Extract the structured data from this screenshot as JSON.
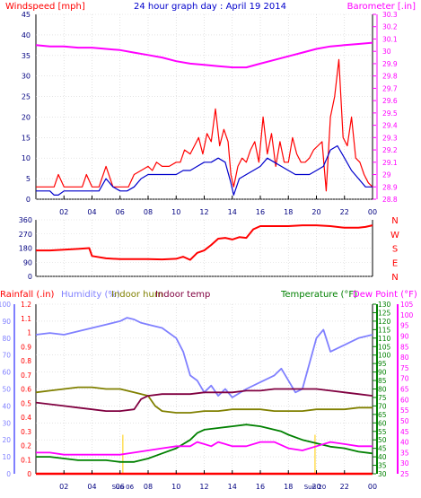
{
  "chart_data": [
    {
      "type": "line",
      "title": "24 hour graph day : April 19 2014",
      "ylabel": "Windspeed [mph]",
      "y2label": "Barometer [.in]",
      "x_ticks": [
        "02",
        "04",
        "06",
        "08",
        "10",
        "12",
        "14",
        "16",
        "18",
        "20",
        "22",
        "00"
      ],
      "ylim": [
        0,
        45
      ],
      "yticks": [
        "0",
        "5",
        "10",
        "15",
        "20",
        "25",
        "30",
        "35",
        "40",
        "45"
      ],
      "y2lim": [
        28.8,
        30.3
      ],
      "y2ticks": [
        "28.8",
        "28.9",
        "29",
        "29.1",
        "29.2",
        "29.3",
        "29.4",
        "29.5",
        "29.6",
        "29.7",
        "29.8",
        "29.9",
        "30",
        "30.1",
        "30.2",
        "30.3"
      ],
      "series": [
        {
          "name": "Windspeed [mph]",
          "color": "#ff0000",
          "axis": "left",
          "x": [
            0,
            0.5,
            1,
            1.3,
            1.6,
            2,
            2.5,
            3,
            3.3,
            3.6,
            4,
            4.5,
            5,
            5.5,
            6,
            6.3,
            6.6,
            7,
            7.5,
            8,
            8.3,
            8.6,
            9,
            9.5,
            10,
            10.3,
            10.6,
            11,
            11.3,
            11.6,
            11.9,
            12.2,
            12.5,
            12.8,
            13.1,
            13.4,
            13.7,
            13.9,
            14.1,
            14.4,
            14.7,
            15,
            15.3,
            15.6,
            15.9,
            16.2,
            16.5,
            16.8,
            17.1,
            17.4,
            17.7,
            18,
            18.3,
            18.6,
            18.9,
            19.2,
            19.5,
            19.8,
            20.1,
            20.4,
            20.7,
            21,
            21.3,
            21.6,
            21.9,
            22.2,
            22.5,
            22.8,
            23.1,
            23.4,
            23.7,
            24
          ],
          "values": [
            3,
            3,
            3,
            3,
            6,
            3,
            3,
            3,
            3,
            6,
            3,
            3,
            8,
            3,
            3,
            3,
            3,
            6,
            7,
            8,
            7,
            9,
            8,
            8,
            9,
            9,
            12,
            11,
            13,
            15,
            11,
            16,
            14,
            22,
            13,
            17,
            14,
            6,
            3,
            8,
            10,
            9,
            12,
            14,
            9,
            20,
            11,
            16,
            8,
            14,
            9,
            9,
            15,
            11,
            9,
            9,
            10,
            12,
            13,
            14,
            2,
            20,
            25,
            34,
            15,
            13,
            20,
            10,
            9,
            6,
            4,
            3
          ]
        },
        {
          "name": "Windspeed avg",
          "color": "#0000cc",
          "axis": "left",
          "x": [
            0,
            0.5,
            1,
            1.3,
            1.6,
            2,
            2.5,
            3,
            3.5,
            4,
            4.5,
            5,
            5.5,
            6,
            6.5,
            7,
            7.5,
            8,
            8.5,
            9,
            9.5,
            10,
            10.5,
            11,
            11.5,
            12,
            12.5,
            13,
            13.5,
            13.9,
            14.1,
            14.5,
            15,
            15.5,
            16,
            16.5,
            17,
            17.5,
            18,
            18.5,
            19,
            19.5,
            20,
            20.5,
            21,
            21.5,
            22,
            22.5,
            23,
            23.5,
            24
          ],
          "values": [
            2,
            2,
            2,
            1,
            1,
            2,
            2,
            2,
            2,
            2,
            2,
            5,
            3,
            2,
            2,
            3,
            5,
            6,
            6,
            6,
            6,
            6,
            7,
            7,
            8,
            9,
            9,
            10,
            9,
            4,
            1,
            5,
            6,
            7,
            8,
            10,
            9,
            8,
            7,
            6,
            6,
            6,
            7,
            8,
            12,
            13,
            10,
            7,
            5,
            3,
            3
          ]
        },
        {
          "name": "Barometer [.in]",
          "color": "#ff00ff",
          "axis": "right",
          "x": [
            0,
            1,
            2,
            3,
            4,
            5,
            6,
            7,
            8,
            9,
            10,
            11,
            12,
            13,
            14,
            15,
            16,
            17,
            18,
            19,
            20,
            21,
            22,
            23,
            24
          ],
          "values": [
            30.05,
            30.04,
            30.04,
            30.03,
            30.03,
            30.02,
            30.01,
            29.99,
            29.97,
            29.95,
            29.92,
            29.9,
            29.89,
            29.88,
            29.87,
            29.87,
            29.9,
            29.93,
            29.96,
            29.99,
            30.02,
            30.04,
            30.05,
            30.06,
            30.07
          ]
        }
      ]
    },
    {
      "type": "line",
      "title": "",
      "y_compass": [
        "N",
        "W",
        "S",
        "E",
        "N"
      ],
      "ylim": [
        0,
        360
      ],
      "yticks": [
        "0",
        "90",
        "180",
        "270",
        "360"
      ],
      "x_ticks": [
        "02",
        "04",
        "06",
        "08",
        "10",
        "12",
        "14",
        "16",
        "18",
        "20",
        "22",
        "00"
      ],
      "series": [
        {
          "name": "Wind direction",
          "color": "#ff0000",
          "x": [
            0,
            1,
            2,
            3,
            3.8,
            4,
            5,
            6,
            7,
            8,
            9,
            9.5,
            10,
            10.5,
            11,
            11.5,
            12,
            12.5,
            13,
            13.5,
            14,
            14.5,
            15,
            15.5,
            16,
            17,
            18,
            19,
            20,
            21,
            22,
            23,
            23.5,
            24
          ],
          "values": [
            165,
            165,
            170,
            175,
            180,
            130,
            115,
            110,
            110,
            110,
            108,
            110,
            112,
            125,
            105,
            150,
            165,
            200,
            240,
            245,
            235,
            250,
            245,
            300,
            320,
            320,
            320,
            325,
            325,
            320,
            310,
            310,
            315,
            325
          ]
        }
      ]
    },
    {
      "type": "line",
      "title": "",
      "legend": [
        "Rainfall (.in)",
        "Humidity (%)",
        "Indoor hum",
        "Indoor temp",
        "Temperature (°F)",
        "Dew Point (°F)"
      ],
      "x_ticks": [
        "02",
        "04",
        "06",
        "08",
        "10",
        "12",
        "14",
        "16",
        "18",
        "20",
        "22",
        "00"
      ],
      "annotations": [
        "Sun 06",
        "Sun 20"
      ],
      "rain_ticks": [
        "0",
        "0.1",
        "0.2",
        "0.3",
        "0.4",
        "0.5",
        "0.6",
        "0.7",
        "0.8",
        "0.9",
        "1",
        "1.1",
        "1.2"
      ],
      "hum_ticks": [
        "0",
        "10",
        "20",
        "30",
        "40",
        "50",
        "60",
        "70",
        "80",
        "90",
        "100"
      ],
      "temp_ticks": [
        "30",
        "35",
        "40",
        "45",
        "50",
        "55",
        "60",
        "65",
        "70",
        "75",
        "80",
        "85",
        "90",
        "95",
        "100",
        "105",
        "110",
        "115",
        "120",
        "125",
        "130"
      ],
      "dew_ticks": [
        "25",
        "30",
        "35",
        "40",
        "45",
        "50",
        "55",
        "60",
        "65",
        "70",
        "75",
        "80",
        "85",
        "90",
        "95",
        "100",
        "105"
      ],
      "series": [
        {
          "name": "Humidity (%)",
          "color": "#8080ff",
          "axis": "humidity",
          "x": [
            0,
            1,
            2,
            3,
            4,
            5,
            6,
            6.5,
            7,
            7.5,
            8,
            9,
            10,
            10.5,
            11,
            11.5,
            12,
            12.5,
            13,
            13.5,
            14,
            15,
            16,
            17,
            17.5,
            18,
            18.5,
            19,
            19.5,
            20,
            20.5,
            21,
            22,
            23,
            24
          ],
          "values": [
            82,
            83,
            82,
            84,
            86,
            88,
            90,
            92,
            91,
            89,
            88,
            86,
            80,
            72,
            58,
            55,
            48,
            52,
            46,
            50,
            45,
            50,
            54,
            58,
            62,
            55,
            48,
            50,
            65,
            80,
            85,
            72,
            76,
            80,
            82
          ]
        },
        {
          "name": "Indoor hum",
          "color": "#808000",
          "axis": "humidity",
          "x": [
            0,
            1,
            2,
            3,
            4,
            5,
            6,
            7,
            8,
            8.5,
            9,
            10,
            11,
            12,
            13,
            14,
            15,
            16,
            17,
            18,
            19,
            20,
            21,
            22,
            23,
            24
          ],
          "values": [
            48,
            49,
            50,
            51,
            51,
            50,
            50,
            48,
            46,
            40,
            37,
            36,
            36,
            37,
            37,
            38,
            38,
            38,
            37,
            37,
            37,
            38,
            38,
            38,
            39,
            39
          ]
        },
        {
          "name": "Indoor temp",
          "color": "#800040",
          "axis": "temperature",
          "x": [
            0,
            1,
            2,
            3,
            4,
            5,
            6,
            7,
            7.5,
            8,
            9,
            10,
            11,
            12,
            13,
            14,
            15,
            16,
            17,
            18,
            19,
            20,
            21,
            22,
            23,
            24
          ],
          "values": [
            72,
            71,
            70,
            69,
            68,
            67,
            67,
            68,
            74,
            76,
            77,
            77,
            77,
            78,
            78,
            78,
            79,
            79,
            80,
            80,
            80,
            80,
            79,
            78,
            77,
            76
          ]
        },
        {
          "name": "Temperature (°F)",
          "color": "#008000",
          "axis": "temperature",
          "x": [
            0,
            1,
            2,
            3,
            4,
            5,
            6,
            7,
            8,
            9,
            10,
            11,
            11.5,
            12,
            13,
            14,
            15,
            16,
            17,
            17.5,
            18,
            19,
            20,
            21,
            22,
            23,
            24
          ],
          "values": [
            40,
            40,
            39,
            38,
            38,
            38,
            37,
            37,
            39,
            42,
            45,
            50,
            54,
            56,
            57,
            58,
            59,
            58,
            56,
            55,
            53,
            50,
            48,
            46,
            45,
            43,
            42
          ]
        },
        {
          "name": "Dew Point (°F)",
          "color": "#ff00ff",
          "axis": "dewpoint",
          "x": [
            0,
            1,
            2,
            3,
            4,
            5,
            6,
            7,
            8,
            9,
            10,
            11,
            11.5,
            12,
            12.5,
            13,
            13.5,
            14,
            15,
            16,
            17,
            18,
            19,
            20,
            21,
            22,
            23,
            24
          ],
          "values": [
            35,
            35,
            34,
            34,
            34,
            34,
            34,
            35,
            36,
            37,
            38,
            38,
            40,
            39,
            38,
            40,
            39,
            38,
            38,
            40,
            40,
            37,
            36,
            38,
            40,
            39,
            38,
            38
          ]
        },
        {
          "name": "Rainfall (.in)",
          "color": "#ff0000",
          "axis": "rain",
          "x": [
            0,
            24
          ],
          "values": [
            0,
            0
          ]
        }
      ]
    }
  ]
}
